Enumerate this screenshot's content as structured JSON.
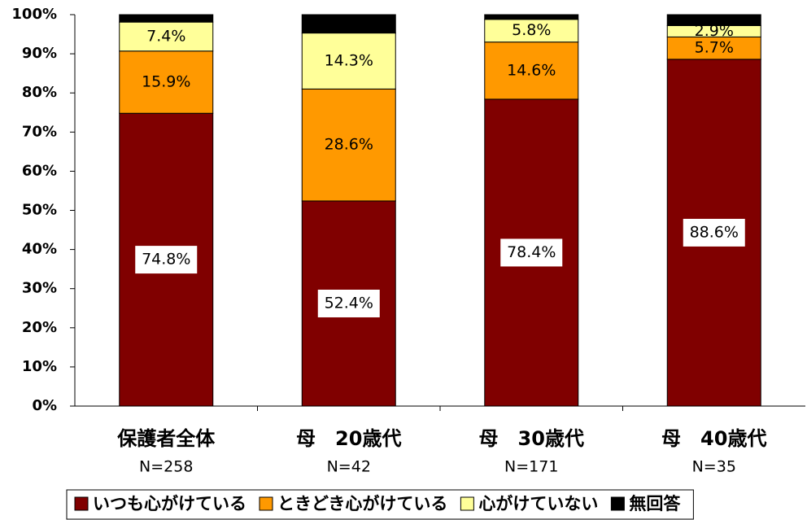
{
  "chart_data": {
    "type": "stacked_bar_percent",
    "categories": [
      "保護者全体",
      "母　20歳代",
      "母　30歳代",
      "母　40歳代"
    ],
    "sample_sizes": [
      "N=258",
      "N=42",
      "N=171",
      "N=35"
    ],
    "series": [
      {
        "name": "いつも心がけている",
        "color": "#800000",
        "values": [
          74.8,
          52.4,
          78.4,
          88.6
        ],
        "value_labels": [
          "74.8%",
          "52.4%",
          "78.4%",
          "88.6%"
        ],
        "label_box": true
      },
      {
        "name": "ときどき心がけている",
        "color": "#ff9900",
        "values": [
          15.9,
          28.6,
          14.6,
          5.7
        ],
        "value_labels": [
          "15.9%",
          "28.6%",
          "14.6%",
          "5.7%"
        ]
      },
      {
        "name": "心がけていない",
        "color": "#ffff99",
        "values": [
          7.4,
          14.3,
          5.8,
          2.9
        ],
        "value_labels": [
          "7.4%",
          "14.3%",
          "5.8%",
          "2.9%"
        ]
      },
      {
        "name": "無回答",
        "color": "#000000",
        "values": [
          1.9,
          4.7,
          1.2,
          2.8
        ]
      }
    ],
    "ylim": [
      0,
      100
    ],
    "yticks": [
      {
        "value": 0,
        "label": "0%"
      },
      {
        "value": 10,
        "label": "10%"
      },
      {
        "value": 20,
        "label": "20%"
      },
      {
        "value": 30,
        "label": "30%"
      },
      {
        "value": 40,
        "label": "40%"
      },
      {
        "value": 50,
        "label": "50%"
      },
      {
        "value": 60,
        "label": "60%"
      },
      {
        "value": 70,
        "label": "70%"
      },
      {
        "value": 80,
        "label": "80%"
      },
      {
        "value": 90,
        "label": "90%"
      },
      {
        "value": 100,
        "label": "100%"
      }
    ],
    "grid": false,
    "legend": "bottom"
  }
}
